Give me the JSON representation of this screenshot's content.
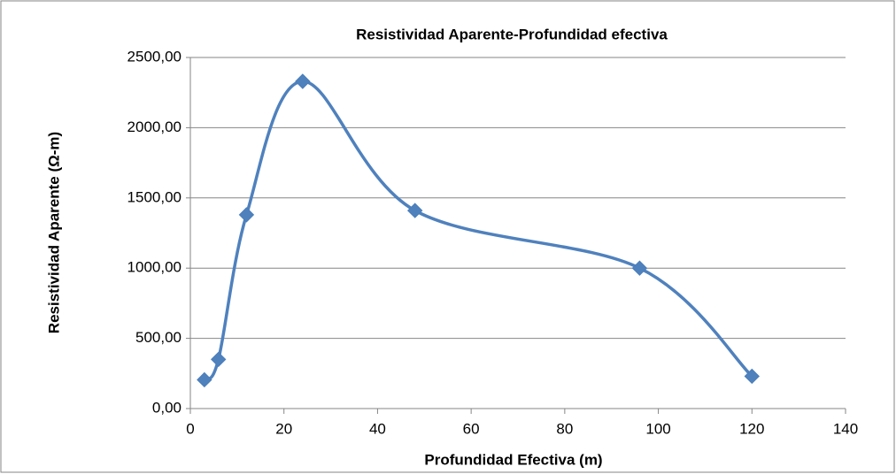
{
  "chart_data": {
    "type": "scatter",
    "title": "Resistividad Aparente-Profundidad efectiva",
    "x_label": "Profundidad Efectiva (m)",
    "y_label": "Resistividad Aparente (Ω-m)",
    "series": [
      {
        "color": "#4f81bd",
        "x": [
          3,
          6,
          12,
          24,
          48,
          96,
          120
        ],
        "values": [
          205,
          350,
          1380,
          2330,
          1410,
          1000,
          230
        ]
      }
    ],
    "xlim": [
      0,
      140
    ],
    "xticks": [
      0,
      20,
      40,
      60,
      80,
      100,
      120,
      140
    ],
    "ylim": [
      0,
      2500
    ],
    "yticks": [
      {
        "value": 0,
        "label": "0,00"
      },
      {
        "value": 500,
        "label": "500,00"
      },
      {
        "value": 1000,
        "label": "1000,00"
      },
      {
        "value": 1500,
        "label": "1500,00"
      },
      {
        "value": 2000,
        "label": "2000,00"
      },
      {
        "value": 2500,
        "label": "2500,00"
      }
    ],
    "grid": true,
    "smooth": true
  }
}
